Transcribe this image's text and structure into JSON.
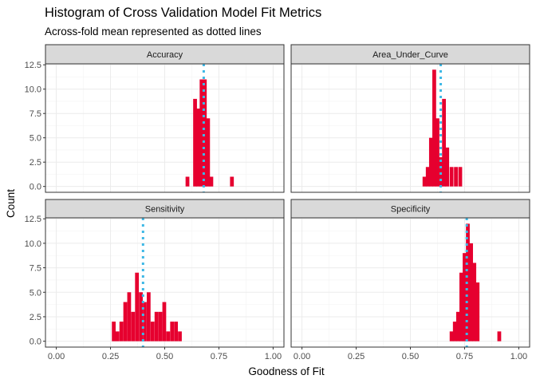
{
  "title": "Histogram of Cross Validation Model Fit Metrics",
  "subtitle": "Across-fold mean represented as dotted lines",
  "chart_data": {
    "type": "bar",
    "xlabel": "Goodness of Fit",
    "ylabel": "Count",
    "xlim": [
      -0.05,
      1.05
    ],
    "ylim": [
      -0.6,
      12.6
    ],
    "x_ticks": [
      "0.00",
      "0.25",
      "0.50",
      "0.75",
      "1.00"
    ],
    "x_tick_values": [
      0,
      0.25,
      0.5,
      0.75,
      1
    ],
    "y_ticks": [
      "0.0",
      "2.5",
      "5.0",
      "7.5",
      "10.0",
      "12.5"
    ],
    "y_tick_values": [
      0,
      2.5,
      5,
      7.5,
      10,
      12.5
    ],
    "bin_width": 0.0175,
    "grid": true,
    "colors": {
      "bar": "#e6002f",
      "mean_line": "#3eb8e6",
      "strip_bg": "#d9d9d9",
      "panel_border": "#333333",
      "grid_major": "#ebebeb",
      "grid_minor": "#f3f3f3"
    },
    "panels": [
      {
        "name": "Accuracy",
        "mean": 0.68,
        "bins": [
          {
            "x": 0.605,
            "count": 1
          },
          {
            "x": 0.64,
            "count": 9
          },
          {
            "x": 0.655,
            "count": 8
          },
          {
            "x": 0.67,
            "count": 11
          },
          {
            "x": 0.685,
            "count": 11
          },
          {
            "x": 0.7,
            "count": 7
          },
          {
            "x": 0.715,
            "count": 1
          },
          {
            "x": 0.81,
            "count": 1
          }
        ]
      },
      {
        "name": "Area_Under_Curve",
        "mean": 0.64,
        "bins": [
          {
            "x": 0.565,
            "count": 1
          },
          {
            "x": 0.58,
            "count": 2
          },
          {
            "x": 0.595,
            "count": 5
          },
          {
            "x": 0.61,
            "count": 12
          },
          {
            "x": 0.625,
            "count": 7
          },
          {
            "x": 0.64,
            "count": 3
          },
          {
            "x": 0.655,
            "count": 9
          },
          {
            "x": 0.67,
            "count": 4
          },
          {
            "x": 0.69,
            "count": 2
          },
          {
            "x": 0.71,
            "count": 2
          },
          {
            "x": 0.73,
            "count": 2
          }
        ]
      },
      {
        "name": "Sensitivity",
        "mean": 0.4,
        "bins": [
          {
            "x": 0.265,
            "count": 2
          },
          {
            "x": 0.282,
            "count": 1
          },
          {
            "x": 0.3,
            "count": 2
          },
          {
            "x": 0.318,
            "count": 4
          },
          {
            "x": 0.336,
            "count": 5
          },
          {
            "x": 0.354,
            "count": 3
          },
          {
            "x": 0.372,
            "count": 7
          },
          {
            "x": 0.39,
            "count": 5
          },
          {
            "x": 0.408,
            "count": 4
          },
          {
            "x": 0.426,
            "count": 5
          },
          {
            "x": 0.444,
            "count": 2
          },
          {
            "x": 0.462,
            "count": 3
          },
          {
            "x": 0.48,
            "count": 3
          },
          {
            "x": 0.498,
            "count": 4
          },
          {
            "x": 0.516,
            "count": 1
          },
          {
            "x": 0.534,
            "count": 2
          },
          {
            "x": 0.552,
            "count": 2
          },
          {
            "x": 0.57,
            "count": 1
          }
        ]
      },
      {
        "name": "Specificity",
        "mean": 0.76,
        "bins": [
          {
            "x": 0.69,
            "count": 1
          },
          {
            "x": 0.705,
            "count": 2
          },
          {
            "x": 0.72,
            "count": 3
          },
          {
            "x": 0.735,
            "count": 7
          },
          {
            "x": 0.75,
            "count": 9
          },
          {
            "x": 0.765,
            "count": 12
          },
          {
            "x": 0.78,
            "count": 10
          },
          {
            "x": 0.795,
            "count": 8
          },
          {
            "x": 0.81,
            "count": 6
          },
          {
            "x": 0.91,
            "count": 1
          }
        ]
      }
    ]
  }
}
